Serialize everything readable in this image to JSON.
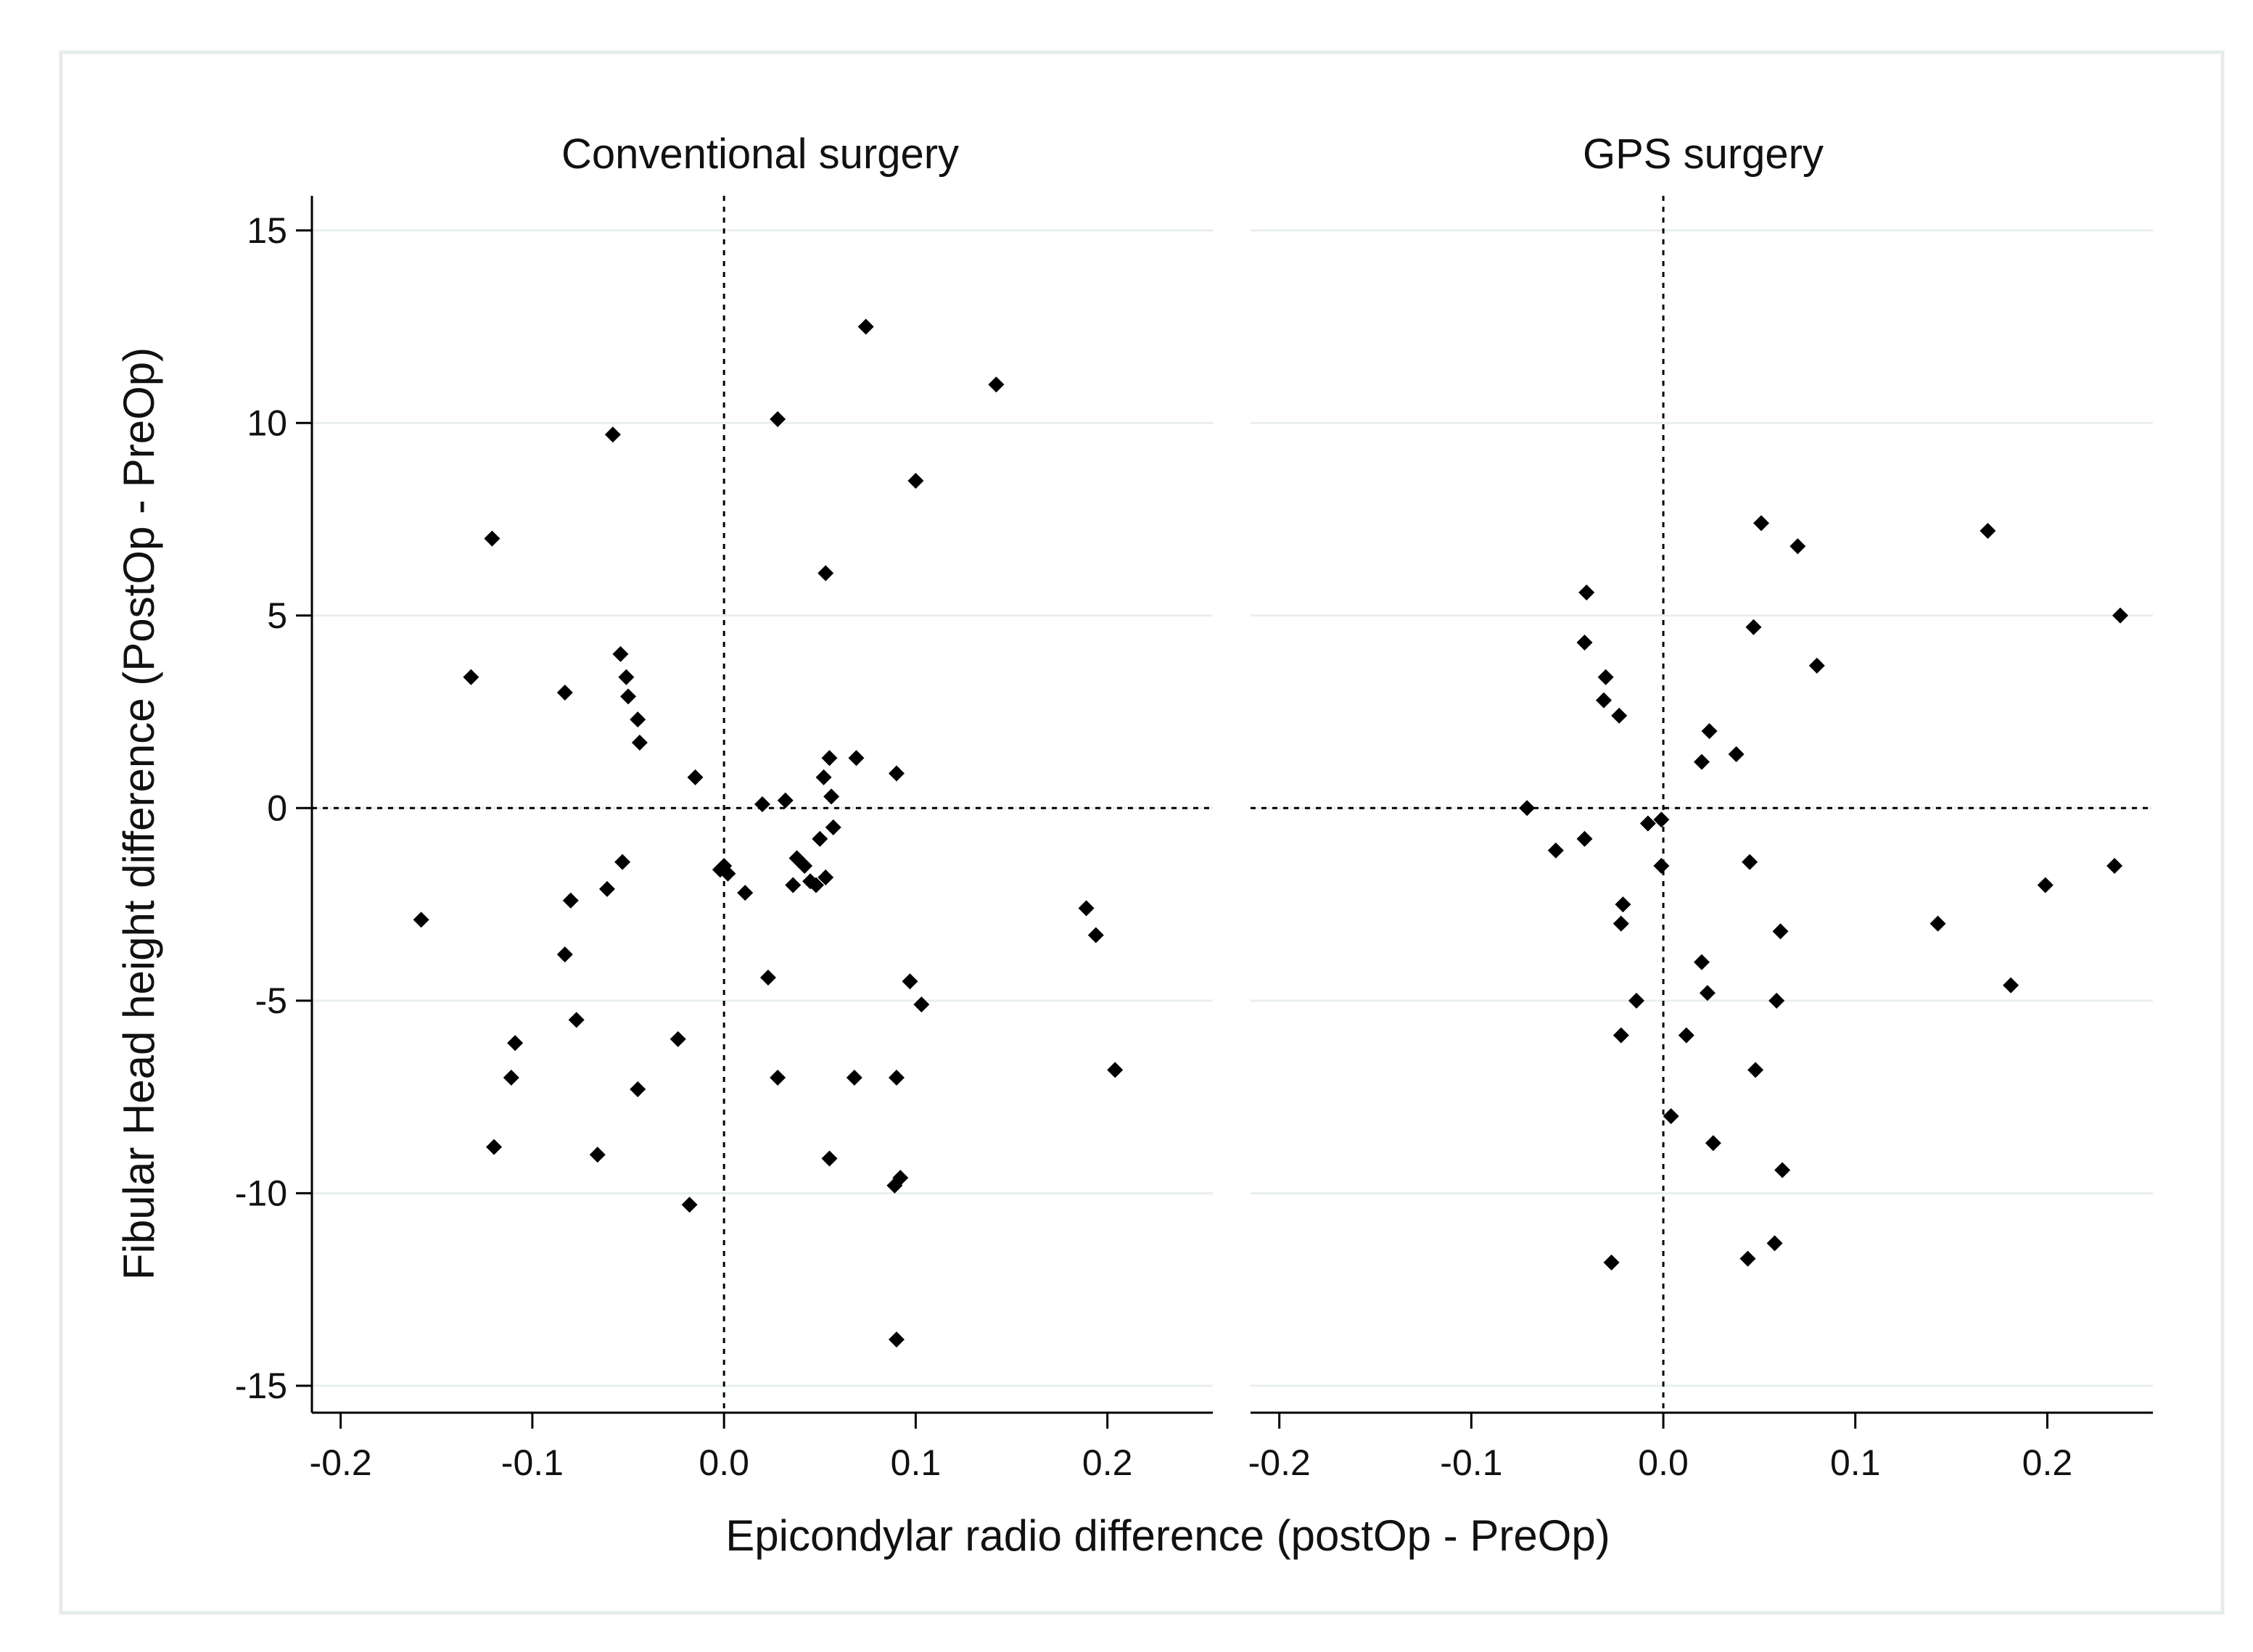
{
  "figure": {
    "ylabel": "Fibular Head height difference (PostOp - PreOp)",
    "xlabel": "Epicondylar radio difference (postOp - PreOp)"
  },
  "chart_data": [
    {
      "type": "scatter",
      "title": "Conventional surgery",
      "xlabel": "Epicondylar radio difference (postOp - PreOp)",
      "ylabel": "Fibular Head height difference (PostOp - PreOp)",
      "xlim": [
        -0.215,
        0.255
      ],
      "ylim": [
        -15.7,
        15.9
      ],
      "xticks": [
        -0.2,
        -0.1,
        0.0,
        0.1,
        0.2
      ],
      "xtick_labels": [
        "-0.2",
        "-0.1",
        "0.0",
        "0.1",
        "0.2"
      ],
      "yticks": [
        15,
        10,
        5,
        0,
        -5,
        -10,
        -15
      ],
      "ytick_labels": [
        "15",
        "10",
        "5",
        "0",
        "-5",
        "-10",
        "-15"
      ],
      "grid": true,
      "reference_lines": {
        "x": 0,
        "y": 0
      },
      "marker": "diamond",
      "points": [
        [
          0.074,
          12.5
        ],
        [
          0.142,
          11.0
        ],
        [
          0.028,
          10.1
        ],
        [
          -0.058,
          9.7
        ],
        [
          0.1,
          8.5
        ],
        [
          -0.121,
          7.0
        ],
        [
          0.053,
          6.1
        ],
        [
          -0.132,
          3.4
        ],
        [
          -0.054,
          4.0
        ],
        [
          -0.051,
          3.4
        ],
        [
          -0.083,
          3.0
        ],
        [
          -0.05,
          2.9
        ],
        [
          -0.045,
          2.3
        ],
        [
          -0.044,
          1.7
        ],
        [
          -0.015,
          0.8
        ],
        [
          0.055,
          1.3
        ],
        [
          0.069,
          1.3
        ],
        [
          0.09,
          0.9
        ],
        [
          0.052,
          0.8
        ],
        [
          0.056,
          0.3
        ],
        [
          0.032,
          0.2
        ],
        [
          0.02,
          0.1
        ],
        [
          0.057,
          -0.5
        ],
        [
          0.05,
          -0.8
        ],
        [
          -0.053,
          -1.4
        ],
        [
          0.038,
          -1.3
        ],
        [
          0.042,
          -1.5
        ],
        [
          0.0,
          -1.5
        ],
        [
          -0.002,
          -1.6
        ],
        [
          0.002,
          -1.7
        ],
        [
          0.045,
          -1.9
        ],
        [
          0.053,
          -1.8
        ],
        [
          0.036,
          -2.0
        ],
        [
          0.048,
          -2.0
        ],
        [
          0.011,
          -2.2
        ],
        [
          -0.061,
          -2.1
        ],
        [
          -0.08,
          -2.4
        ],
        [
          -0.158,
          -2.9
        ],
        [
          0.189,
          -2.6
        ],
        [
          0.194,
          -3.3
        ],
        [
          -0.083,
          -3.8
        ],
        [
          0.023,
          -4.4
        ],
        [
          0.097,
          -4.5
        ],
        [
          0.103,
          -5.1
        ],
        [
          -0.077,
          -5.5
        ],
        [
          -0.109,
          -6.1
        ],
        [
          -0.024,
          -6.0
        ],
        [
          -0.111,
          -7.0
        ],
        [
          -0.045,
          -7.3
        ],
        [
          0.028,
          -7.0
        ],
        [
          0.068,
          -7.0
        ],
        [
          0.09,
          -7.0
        ],
        [
          0.204,
          -6.8
        ],
        [
          -0.12,
          -8.8
        ],
        [
          -0.066,
          -9.0
        ],
        [
          0.055,
          -9.1
        ],
        [
          0.092,
          -9.6
        ],
        [
          0.089,
          -9.8
        ],
        [
          -0.018,
          -10.3
        ],
        [
          0.09,
          -13.8
        ]
      ]
    },
    {
      "type": "scatter",
      "title": "GPS surgery",
      "xlabel": "Epicondylar radio difference (postOp - PreOp)",
      "ylabel": "Fibular Head height difference (PostOp - PreOp)",
      "xlim": [
        -0.215,
        0.255
      ],
      "ylim": [
        -15.7,
        15.9
      ],
      "xticks": [
        -0.2,
        -0.1,
        0.0,
        0.1,
        0.2
      ],
      "xtick_labels": [
        "-0.2",
        "-0.1",
        "0.0",
        "0.1",
        "0.2"
      ],
      "grid": true,
      "reference_lines": {
        "x": 0,
        "y": 0
      },
      "marker": "diamond",
      "points": [
        [
          0.051,
          7.4
        ],
        [
          0.07,
          6.8
        ],
        [
          0.169,
          7.2
        ],
        [
          -0.04,
          5.6
        ],
        [
          0.238,
          5.0
        ],
        [
          0.047,
          4.7
        ],
        [
          -0.041,
          4.3
        ],
        [
          0.08,
          3.7
        ],
        [
          -0.03,
          3.4
        ],
        [
          -0.031,
          2.8
        ],
        [
          -0.023,
          2.4
        ],
        [
          0.024,
          2.0
        ],
        [
          0.038,
          1.4
        ],
        [
          0.02,
          1.2
        ],
        [
          -0.071,
          0.0
        ],
        [
          -0.008,
          -0.4
        ],
        [
          -0.001,
          -0.3
        ],
        [
          -0.041,
          -0.8
        ],
        [
          -0.056,
          -1.1
        ],
        [
          -0.001,
          -1.5
        ],
        [
          0.045,
          -1.4
        ],
        [
          0.235,
          -1.5
        ],
        [
          0.199,
          -2.0
        ],
        [
          -0.021,
          -2.5
        ],
        [
          -0.022,
          -3.0
        ],
        [
          0.143,
          -3.0
        ],
        [
          0.061,
          -3.2
        ],
        [
          0.02,
          -4.0
        ],
        [
          0.181,
          -4.6
        ],
        [
          0.023,
          -4.8
        ],
        [
          -0.014,
          -5.0
        ],
        [
          0.059,
          -5.0
        ],
        [
          -0.022,
          -5.9
        ],
        [
          0.012,
          -5.9
        ],
        [
          0.048,
          -6.8
        ],
        [
          0.004,
          -8.0
        ],
        [
          0.026,
          -8.7
        ],
        [
          0.062,
          -9.4
        ],
        [
          0.058,
          -11.3
        ],
        [
          -0.027,
          -11.8
        ],
        [
          0.044,
          -11.7
        ]
      ]
    }
  ]
}
